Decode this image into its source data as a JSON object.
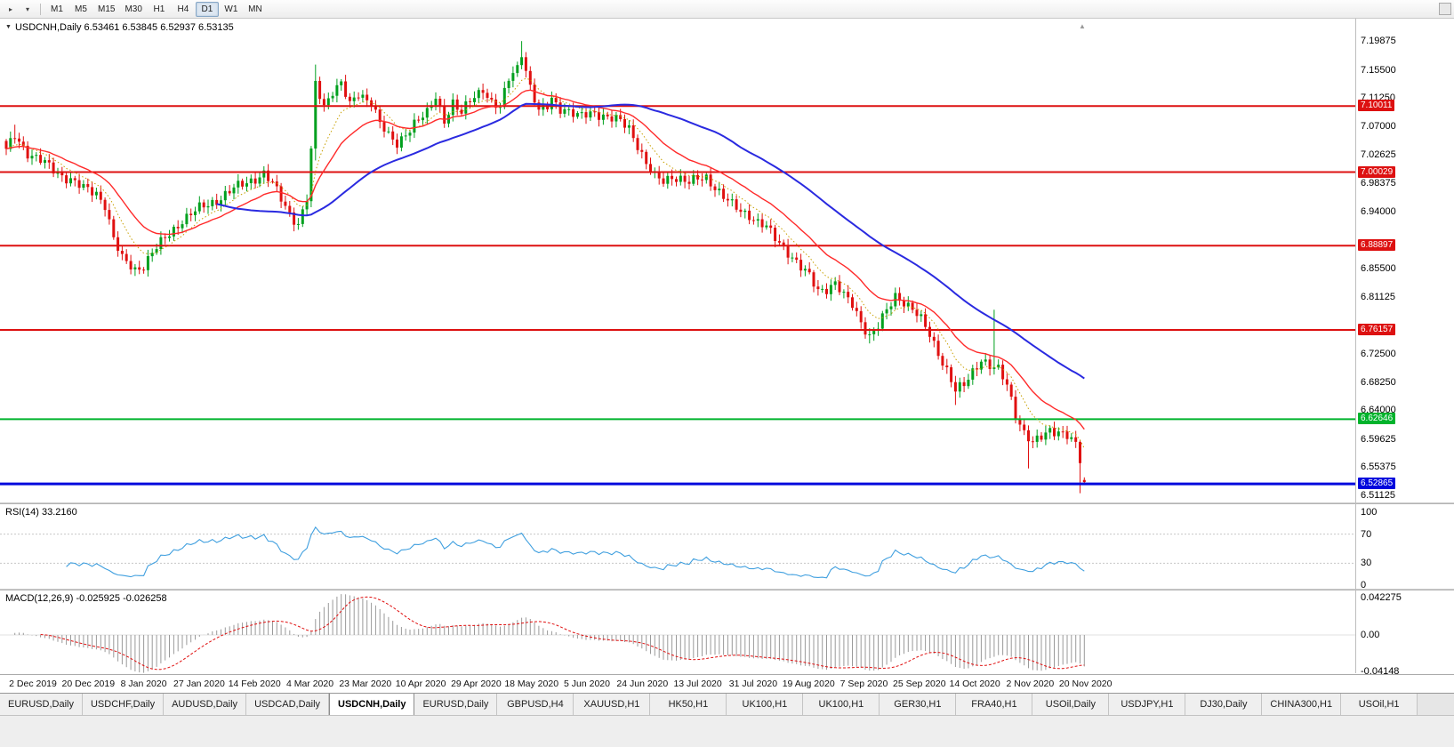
{
  "toolbar": {
    "timeframes": [
      "M1",
      "M5",
      "M15",
      "M30",
      "H1",
      "H4",
      "D1",
      "W1",
      "MN"
    ],
    "active_timeframe": "D1"
  },
  "chart": {
    "symbol": "USDCNH",
    "period": "Daily",
    "header": "USDCNH,Daily 6.53461 6.53845 6.52937 6.53135",
    "open": "6.53461",
    "high": "6.53845",
    "low": "6.52937",
    "close": "6.53135"
  },
  "chart_data": {
    "type": "candlestick",
    "symbol": "USDCNH",
    "timeframe": "Daily",
    "bars": 252,
    "colors": {
      "up": "#00a01e",
      "down": "#e01010",
      "ma_fast": "#ff2a2a",
      "ma_slow": "#2a2ae0",
      "ma_dotted": "#c8a000",
      "rsi": "#3f9fdf",
      "rsi_level": "#c8c8c8",
      "macd_hist": "#9a9a9a",
      "macd_signal": "#e01010"
    },
    "y_axis_ticks": [
      "7.19875",
      "7.15500",
      "7.11250",
      "7.07000",
      "7.02625",
      "6.98375",
      "6.94000",
      "6.85500",
      "6.81125",
      "6.72500",
      "6.68250",
      "6.64000",
      "6.59625",
      "6.55375",
      "6.51125"
    ],
    "price_lines": [
      {
        "label": "7.10011",
        "value": 7.10011,
        "color": "#dd1111",
        "width": 2
      },
      {
        "label": "7.00029",
        "value": 7.00029,
        "color": "#dd1111",
        "width": 2
      },
      {
        "label": "6.88897",
        "value": 6.88897,
        "color": "#dd1111",
        "width": 2
      },
      {
        "label": "6.76157",
        "value": 6.76157,
        "color": "#dd1111",
        "width": 2
      },
      {
        "label": "6.62646",
        "value": 6.62646,
        "color": "#00b32c",
        "width": 2
      },
      {
        "label": "6.52865",
        "value": 6.52865,
        "color": "#0008dd",
        "width": 3
      }
    ],
    "x_axis_dates": [
      "2 Dec 2019",
      "20 Dec 2019",
      "8 Jan 2020",
      "27 Jan 2020",
      "14 Feb 2020",
      "4 Mar 2020",
      "23 Mar 2020",
      "10 Apr 2020",
      "29 Apr 2020",
      "18 May 2020",
      "5 Jun 2020",
      "24 Jun 2020",
      "13 Jul 2020",
      "31 Jul 2020",
      "19 Aug 2020",
      "7 Sep 2020",
      "25 Sep 2020",
      "14 Oct 2020",
      "2 Nov 2020",
      "20 Nov 2020"
    ],
    "close_anchors": [
      [
        0,
        7.032
      ],
      [
        2,
        7.055
      ],
      [
        5,
        7.03
      ],
      [
        8,
        7.018
      ],
      [
        12,
        6.998
      ],
      [
        15,
        6.99
      ],
      [
        18,
        6.975
      ],
      [
        21,
        6.968
      ],
      [
        23,
        6.952
      ],
      [
        25,
        6.9
      ],
      [
        27,
        6.868
      ],
      [
        30,
        6.853
      ],
      [
        32,
        6.86
      ],
      [
        34,
        6.878
      ],
      [
        37,
        6.9
      ],
      [
        41,
        6.928
      ],
      [
        45,
        6.945
      ],
      [
        49,
        6.958
      ],
      [
        53,
        6.975
      ],
      [
        57,
        6.988
      ],
      [
        60,
        6.998
      ],
      [
        62,
        6.982
      ],
      [
        64,
        6.96
      ],
      [
        66,
        6.938
      ],
      [
        68,
        6.922
      ],
      [
        69,
        6.94
      ],
      [
        70,
        6.96
      ],
      [
        71,
        7.03
      ],
      [
        72,
        7.132
      ],
      [
        74,
        7.1
      ],
      [
        76,
        7.125
      ],
      [
        78,
        7.135
      ],
      [
        80,
        7.1
      ],
      [
        82,
        7.118
      ],
      [
        85,
        7.108
      ],
      [
        87,
        7.075
      ],
      [
        89,
        7.053
      ],
      [
        91,
        7.042
      ],
      [
        93,
        7.06
      ],
      [
        95,
        7.075
      ],
      [
        98,
        7.088
      ],
      [
        100,
        7.115
      ],
      [
        102,
        7.08
      ],
      [
        104,
        7.105
      ],
      [
        106,
        7.088
      ],
      [
        108,
        7.108
      ],
      [
        111,
        7.128
      ],
      [
        113,
        7.105
      ],
      [
        115,
        7.096
      ],
      [
        117,
        7.142
      ],
      [
        119,
        7.16
      ],
      [
        120,
        7.183
      ],
      [
        121,
        7.155
      ],
      [
        122,
        7.128
      ],
      [
        124,
        7.09
      ],
      [
        126,
        7.1
      ],
      [
        127,
        7.112
      ],
      [
        129,
        7.098
      ],
      [
        131,
        7.092
      ],
      [
        133,
        7.083
      ],
      [
        135,
        7.088
      ],
      [
        137,
        7.092
      ],
      [
        139,
        7.085
      ],
      [
        141,
        7.08
      ],
      [
        143,
        7.077
      ],
      [
        145,
        7.068
      ],
      [
        147,
        7.042
      ],
      [
        149,
        7.012
      ],
      [
        151,
        6.992
      ],
      [
        153,
        6.987
      ],
      [
        155,
        6.995
      ],
      [
        157,
        6.99
      ],
      [
        159,
        6.983
      ],
      [
        161,
        6.99
      ],
      [
        163,
        6.993
      ],
      [
        165,
        6.978
      ],
      [
        167,
        6.962
      ],
      [
        169,
        6.95
      ],
      [
        171,
        6.942
      ],
      [
        173,
        6.936
      ],
      [
        175,
        6.924
      ],
      [
        177,
        6.916
      ],
      [
        179,
        6.9
      ],
      [
        181,
        6.888
      ],
      [
        183,
        6.872
      ],
      [
        185,
        6.855
      ],
      [
        187,
        6.842
      ],
      [
        189,
        6.822
      ],
      [
        191,
        6.825
      ],
      [
        193,
        6.832
      ],
      [
        195,
        6.812
      ],
      [
        197,
        6.8
      ],
      [
        199,
        6.775
      ],
      [
        201,
        6.752
      ],
      [
        203,
        6.766
      ],
      [
        205,
        6.79
      ],
      [
        207,
        6.814
      ],
      [
        209,
        6.805
      ],
      [
        211,
        6.792
      ],
      [
        213,
        6.776
      ],
      [
        215,
        6.755
      ],
      [
        217,
        6.728
      ],
      [
        219,
        6.7
      ],
      [
        221,
        6.668
      ],
      [
        223,
        6.678
      ],
      [
        225,
        6.7
      ],
      [
        227,
        6.718
      ],
      [
        229,
        6.705
      ],
      [
        231,
        6.7
      ],
      [
        233,
        6.68
      ],
      [
        235,
        6.636
      ],
      [
        237,
        6.605
      ],
      [
        239,
        6.588
      ],
      [
        241,
        6.6
      ],
      [
        243,
        6.612
      ],
      [
        245,
        6.608
      ],
      [
        247,
        6.6
      ],
      [
        249,
        6.586
      ],
      [
        250,
        6.565
      ],
      [
        251,
        6.531
      ]
    ],
    "wick_overrides": [
      {
        "index": 2,
        "high": 7.072
      },
      {
        "index": 72,
        "high": 7.163,
        "low": 7.018
      },
      {
        "index": 120,
        "high": 7.1985
      },
      {
        "index": 201,
        "low": 6.741
      },
      {
        "index": 221,
        "low": 6.648
      },
      {
        "index": 230,
        "high": 6.792
      },
      {
        "index": 238,
        "low": 6.552
      },
      {
        "index": 250,
        "low": 6.5145
      }
    ],
    "last_bar": {
      "open": 6.53461,
      "high": 6.53845,
      "low": 6.52937,
      "close": 6.53135
    },
    "moving_averages": [
      {
        "type": "ema",
        "period": 9,
        "color_key": "ma_dotted",
        "style": "dotted"
      },
      {
        "type": "ema",
        "period": 20,
        "color_key": "ma_fast",
        "style": "solid"
      },
      {
        "type": "sma",
        "period": 50,
        "color_key": "ma_slow",
        "style": "solid"
      }
    ],
    "rsi": {
      "label": "RSI(14) 33.2160",
      "period": 14,
      "current": "33.2160",
      "levels": [
        70,
        30
      ],
      "axis_ticks": [
        "100",
        "70",
        "30",
        "0"
      ]
    },
    "macd": {
      "label": "MACD(12,26,9) -0.025925 -0.026258",
      "fast": 12,
      "slow": 26,
      "signal": 9,
      "current_macd": "-0.025925",
      "current_signal": "-0.026258",
      "axis_ticks": [
        "0.042275",
        "0.00",
        "-0.04148"
      ]
    }
  },
  "tabs": {
    "active_index": 4,
    "items": [
      "EURUSD,Daily",
      "USDCHF,Daily",
      "AUDUSD,Daily",
      "USDCAD,Daily",
      "USDCNH,Daily",
      "EURUSD,Daily",
      "GBPUSD,H4",
      "XAUUSD,H1",
      "HK50,H1",
      "UK100,H1",
      "UK100,H1",
      "GER30,H1",
      "FRA40,H1",
      "USOil,Daily",
      "USDJPY,H1",
      "DJ30,Daily",
      "CHINA300,H1",
      "USOil,H1"
    ]
  }
}
